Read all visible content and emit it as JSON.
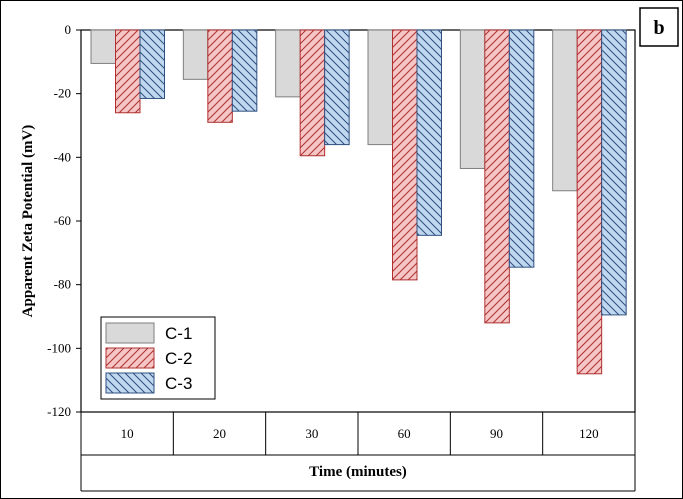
{
  "panel_label": "b",
  "chart_data": {
    "type": "bar",
    "categories": [
      "10",
      "20",
      "30",
      "60",
      "90",
      "120"
    ],
    "series": [
      {
        "name": "C-1",
        "values": [
          -10.5,
          -15.5,
          -21,
          -36,
          -43.5,
          -50.5
        ],
        "fill": "#d9d9d9",
        "stroke": "#7f7f7f",
        "pattern": "none"
      },
      {
        "name": "C-2",
        "values": [
          -26,
          -29,
          -39.5,
          -78.5,
          -92,
          -108
        ],
        "fill": "#f4c6c6",
        "stroke": "#b03030",
        "pattern": "forward-hatch"
      },
      {
        "name": "C-3",
        "values": [
          -21.5,
          -25.5,
          -36,
          -64.5,
          -74.5,
          -89.5
        ],
        "fill": "#bfd8f0",
        "stroke": "#2f4f7f",
        "pattern": "back-hatch"
      }
    ],
    "xlabel": "Time (minutes)",
    "ylabel": "Apparent Zeta Potential (mV)",
    "ylim": [
      -120,
      0
    ],
    "yticks": [
      0,
      -20,
      -40,
      -60,
      -80,
      -100,
      -120
    ],
    "legend_position": "bottom-left",
    "grid": false
  }
}
